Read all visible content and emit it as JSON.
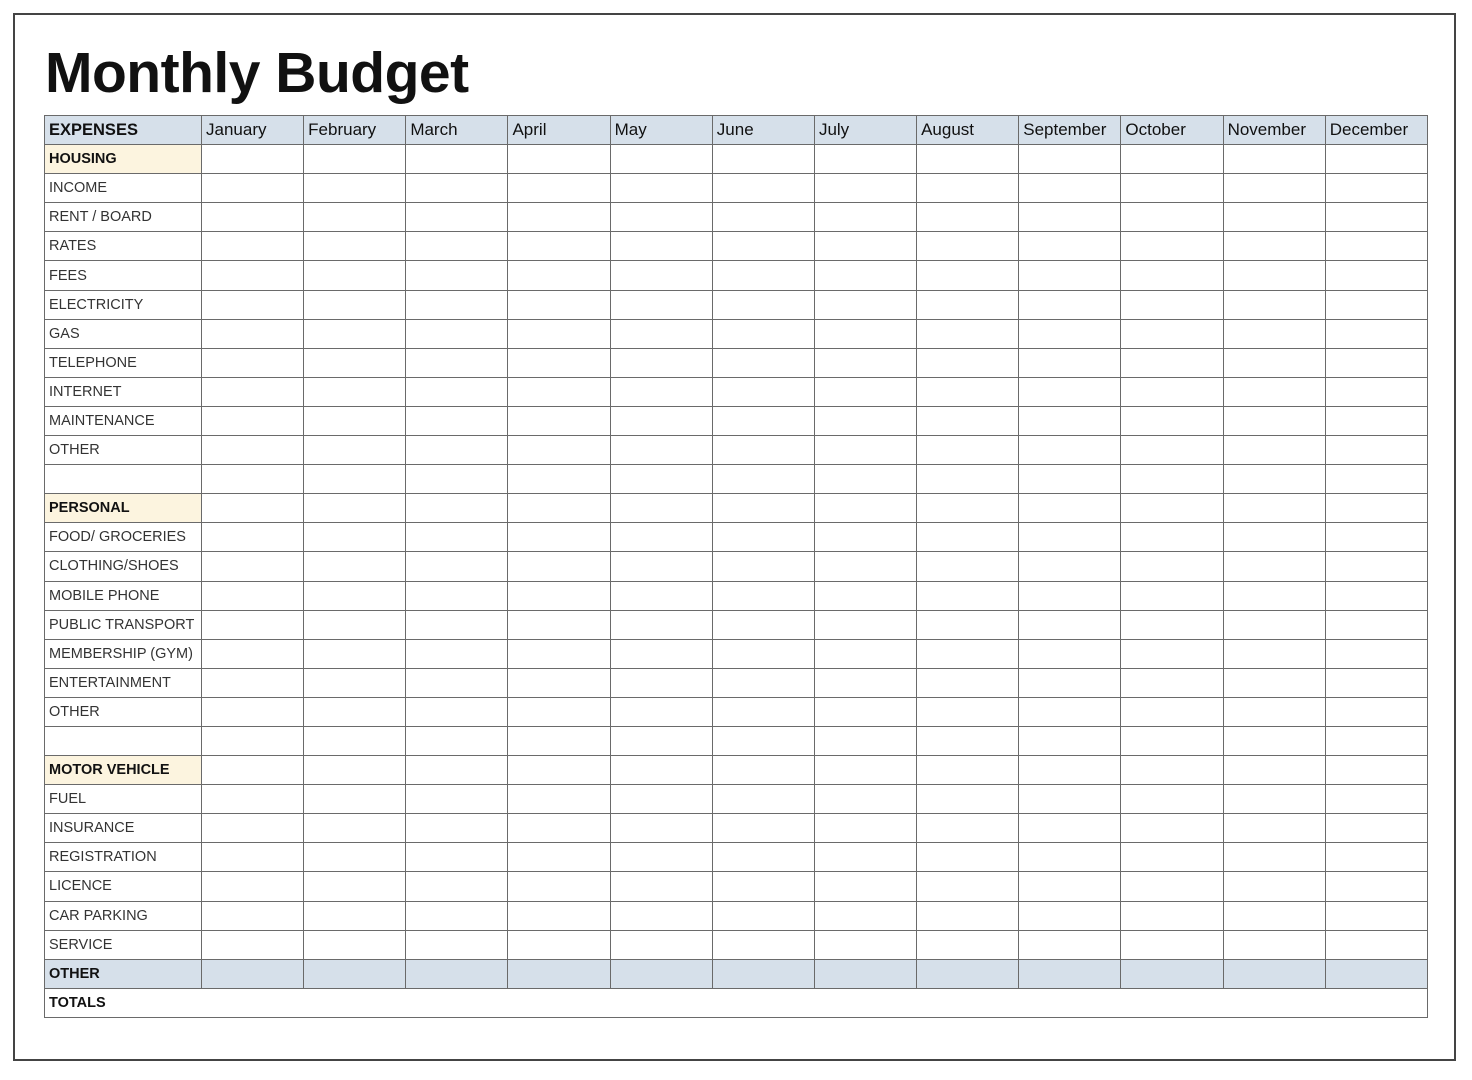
{
  "title": "Monthly Budget",
  "table": {
    "header": [
      "EXPENSES",
      "January",
      "February",
      "March",
      "April",
      "May",
      "June",
      "July",
      "August",
      "September",
      "October",
      "November",
      "December"
    ],
    "rows": [
      {
        "label": "HOUSING",
        "type": "section"
      },
      {
        "label": "INCOME",
        "type": "item"
      },
      {
        "label": "RENT / BOARD",
        "type": "item"
      },
      {
        "label": "RATES",
        "type": "item"
      },
      {
        "label": "FEES",
        "type": "item"
      },
      {
        "label": "ELECTRICITY",
        "type": "item"
      },
      {
        "label": "GAS",
        "type": "item"
      },
      {
        "label": "TELEPHONE",
        "type": "item"
      },
      {
        "label": "INTERNET",
        "type": "item"
      },
      {
        "label": "MAINTENANCE",
        "type": "item"
      },
      {
        "label": "OTHER",
        "type": "item"
      },
      {
        "label": "",
        "type": "item"
      },
      {
        "label": "PERSONAL",
        "type": "section"
      },
      {
        "label": "FOOD/ GROCERIES",
        "type": "item"
      },
      {
        "label": "CLOTHING/SHOES",
        "type": "item"
      },
      {
        "label": "MOBILE PHONE",
        "type": "item"
      },
      {
        "label": "PUBLIC TRANSPORT",
        "type": "item"
      },
      {
        "label": "MEMBERSHIP (GYM)",
        "type": "item"
      },
      {
        "label": "ENTERTAINMENT",
        "type": "item"
      },
      {
        "label": "OTHER",
        "type": "item"
      },
      {
        "label": "",
        "type": "item"
      },
      {
        "label": "MOTOR VEHICLE",
        "type": "section"
      },
      {
        "label": "FUEL",
        "type": "item"
      },
      {
        "label": "INSURANCE",
        "type": "item"
      },
      {
        "label": "REGISTRATION",
        "type": "item"
      },
      {
        "label": "LICENCE",
        "type": "item"
      },
      {
        "label": "CAR PARKING",
        "type": "item"
      },
      {
        "label": "SERVICE",
        "type": "item"
      },
      {
        "label": "OTHER",
        "type": "sum"
      },
      {
        "label": "TOTALS",
        "type": "totals"
      }
    ]
  },
  "colors": {
    "header_bg": "#d6e0ea",
    "section_bg": "#fcf4df",
    "border": "#6a6a6a"
  }
}
